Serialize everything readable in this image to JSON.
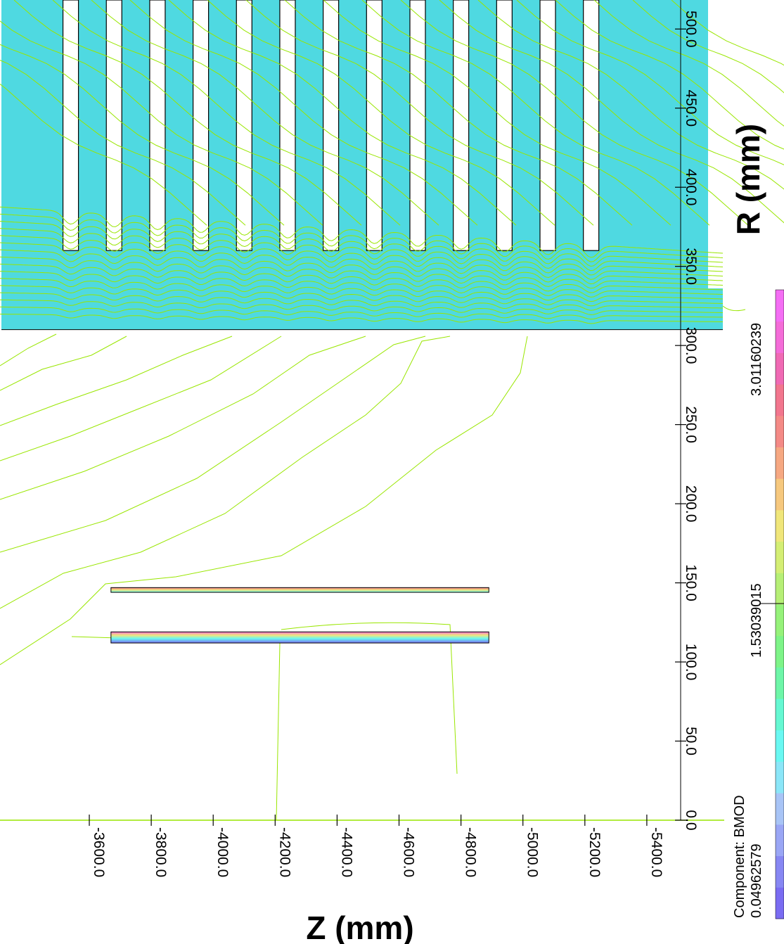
{
  "chart_data": {
    "type": "heatmap",
    "title": "",
    "xlabel": "Z (mm)",
    "ylabel": "R (mm)",
    "z_ticks": [
      {
        "value": -3600,
        "label": "-3600.0"
      },
      {
        "value": -3800,
        "label": "-3800.0"
      },
      {
        "value": -4000,
        "label": "-4000.0"
      },
      {
        "value": -4200,
        "label": "-4200.0"
      },
      {
        "value": -4400,
        "label": "-4400.0"
      },
      {
        "value": -4600,
        "label": "-4600.0"
      },
      {
        "value": -4800,
        "label": "-4800.0"
      },
      {
        "value": -5000,
        "label": "-5000.0"
      },
      {
        "value": -5200,
        "label": "-5200.0"
      },
      {
        "value": -5400,
        "label": "-5400.0"
      }
    ],
    "r_ticks": [
      {
        "value": 0,
        "label": "0.0"
      },
      {
        "value": 50,
        "label": "50.0"
      },
      {
        "value": 100,
        "label": "100.0"
      },
      {
        "value": 150,
        "label": "150.0"
      },
      {
        "value": 200,
        "label": "200.0"
      },
      {
        "value": 250,
        "label": "250.0"
      },
      {
        "value": 300,
        "label": "300.0"
      },
      {
        "value": 350,
        "label": "350.0"
      },
      {
        "value": 400,
        "label": "400.0"
      },
      {
        "value": 450,
        "label": "450.0"
      },
      {
        "value": 500,
        "label": "500.0"
      }
    ],
    "z_range": [
      -3440,
      -5600
    ],
    "r_range": [
      0,
      530
    ],
    "iron_region": {
      "r_min": 310,
      "z_min": -3440,
      "z_max": -5580
    },
    "slots": {
      "r_min": 360,
      "z_centers": [
        -3540,
        -3690,
        -3840,
        -3990,
        -4140,
        -4290,
        -4440,
        -4590,
        -4740,
        -4890,
        -5040,
        -5190,
        -5340
      ],
      "width_mm": 50
    },
    "magnets": [
      {
        "r_min": 112,
        "r_max": 119,
        "z_start": -3670,
        "z_end": -4890
      },
      {
        "r_min": 144,
        "r_max": 147,
        "z_start": -3670,
        "z_end": -4890
      }
    ],
    "colorbar": {
      "component": "Component: BMOD",
      "min_label": "0.04962579",
      "mid_label": "1.53039015",
      "max_label": "3.01160239",
      "colors": [
        "#7a6cf2",
        "#8787f3",
        "#9aa6f5",
        "#a8c4f6",
        "#8be6f8",
        "#6af8f2",
        "#66f8d2",
        "#6ef6a8",
        "#7ef488",
        "#96f27a",
        "#b6ef76",
        "#d4ee74",
        "#f0e67a",
        "#f6c87e",
        "#f6a882",
        "#f48a86",
        "#f2768e",
        "#f06ab4",
        "#f46cd8",
        "#f46ef4"
      ]
    },
    "colors": {
      "iron": "#4fd9e1",
      "contour": "#99e600",
      "slot": "#ffffff",
      "outline": "#000000"
    },
    "grid": false,
    "legend_position": "right"
  }
}
